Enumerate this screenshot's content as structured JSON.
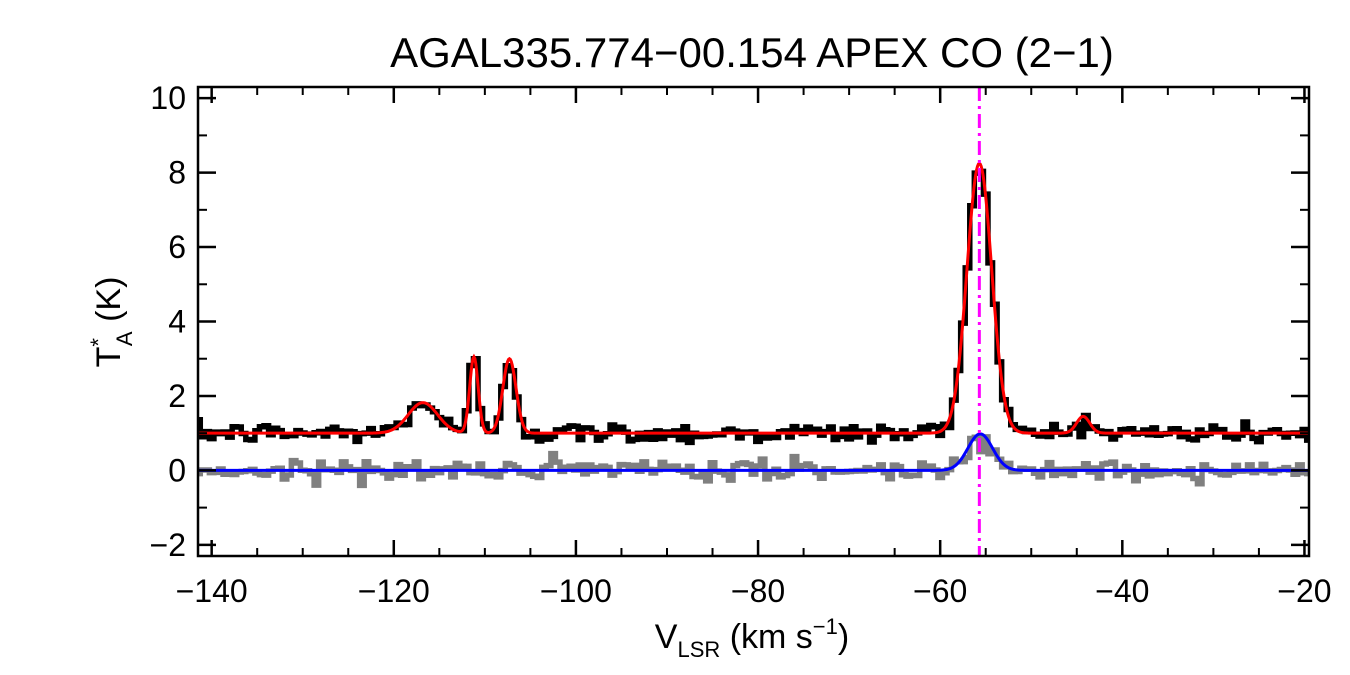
{
  "chart_data": {
    "type": "line",
    "title": "AGAL335.774−00.154  APEX CO (2−1)",
    "xlabel": {
      "main": "V",
      "sub": "LSR",
      "unit_open": " (km s",
      "unit_sup": "−1",
      "unit_close": ")"
    },
    "ylabel": {
      "main": "T",
      "sup": "*",
      "sub": "A",
      "unit": " (K)"
    },
    "xlim": [
      -141.5,
      -19.5
    ],
    "ylim": [
      -2.3,
      10.3
    ],
    "x_ticks": [
      -140,
      -120,
      -100,
      -80,
      -60,
      -40,
      -20
    ],
    "x_tick_labels": [
      "−140",
      "−120",
      "−100",
      "−80",
      "−60",
      "−40",
      "−20"
    ],
    "y_ticks": [
      -2,
      0,
      2,
      4,
      6,
      8,
      10
    ],
    "y_tick_labels": [
      "−2",
      "0",
      "2",
      "4",
      "6",
      "8",
      "10"
    ],
    "grid": false,
    "legend": "none",
    "reference_line": {
      "x": -55.7,
      "style": "dash-dot",
      "color": "#ff00ff"
    },
    "fit_components_total": [
      {
        "center": -116.8,
        "amplitude": 0.82,
        "fwhm": 3.8
      },
      {
        "center": -111.2,
        "amplitude": 2.05,
        "fwhm": 1.1
      },
      {
        "center": -107.3,
        "amplitude": 2.0,
        "fwhm": 1.7
      },
      {
        "center": -55.7,
        "amplitude": 7.25,
        "fwhm": 3.2
      },
      {
        "center": -44.3,
        "amplitude": 0.45,
        "fwhm": 1.7
      }
    ],
    "fit_components_residual": [
      {
        "center": -55.6,
        "amplitude": 0.98,
        "fwhm": 3.2
      }
    ],
    "series": [
      {
        "color": "#000000",
        "style": "histogram",
        "baseline": 1.0,
        "noise_rms": 0.13,
        "follows": "fit_components_total"
      },
      {
        "color": "#808080",
        "style": "histogram",
        "baseline": 0.0,
        "noise_rms": 0.13,
        "follows": "fit_components_residual"
      },
      {
        "color": "#ff0000",
        "style": "line",
        "baseline": 1.0,
        "follows": "fit_components_total"
      },
      {
        "color": "#0000ff",
        "style": "line",
        "baseline": 0.0,
        "follows": "fit_components_residual"
      }
    ],
    "x_step": 0.5
  }
}
